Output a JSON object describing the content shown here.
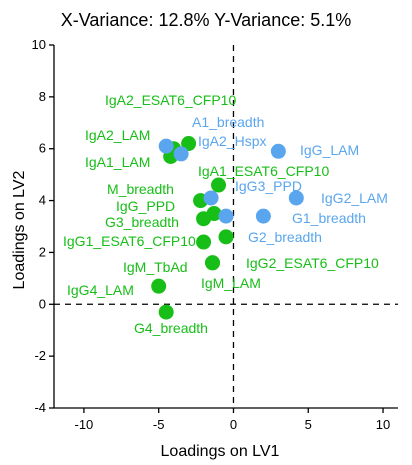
{
  "chart_data": {
    "type": "scatter",
    "title": "X-Variance: 12.8%  Y-Variance: 5.1%",
    "xlabel": "Loadings on LV1",
    "ylabel": "Loadings on LV2",
    "xlim": [
      -12,
      11
    ],
    "ylim": [
      -4,
      10
    ],
    "xticks": [
      -10,
      -5,
      0,
      5,
      10
    ],
    "yticks": [
      -4,
      -2,
      0,
      2,
      4,
      6,
      8,
      10
    ],
    "xtick_labels": [
      "-10",
      "-5",
      "0",
      "5",
      "10"
    ],
    "ytick_labels": [
      "-4",
      "-2",
      "0",
      "2",
      "4",
      "6",
      "8",
      "10"
    ],
    "reference_lines": {
      "x": 0,
      "y": 0,
      "style": "dashed"
    },
    "colors": {
      "green": "#17be17",
      "blue": "#5aa6ee"
    },
    "series": [
      {
        "color": "green",
        "points": [
          {
            "label": "IgA2_ESAT6_CFP10",
            "x": -3.0,
            "y": 6.2
          },
          {
            "label": "IgA2_LAM",
            "x": -4.0,
            "y": 6.0
          },
          {
            "label": "IgA1_LAM",
            "x": -4.2,
            "y": 5.7
          },
          {
            "label": "IgA1_ESAT6_CFP10",
            "x": -1.0,
            "y": 4.6
          },
          {
            "label": "M_breadth",
            "x": -2.2,
            "y": 4.0
          },
          {
            "label": "IgG_PPD",
            "x": -1.3,
            "y": 3.5
          },
          {
            "label": "G3_breadth",
            "x": -2.0,
            "y": 3.3
          },
          {
            "label": "IgG1_ESAT6_CFP10",
            "x": -2.0,
            "y": 2.4
          },
          {
            "label": "IgG2_ESAT6_CFP10",
            "x": -0.5,
            "y": 2.6
          },
          {
            "label": "IgM_TbAd",
            "x": -1.4,
            "y": 1.6
          },
          {
            "label": "IgM_LAM",
            "x": -1.4,
            "y": 1.6
          },
          {
            "label": "IgG4_LAM",
            "x": -5.0,
            "y": 0.7
          },
          {
            "label": "G4_breadth",
            "x": -4.5,
            "y": -0.3
          }
        ]
      },
      {
        "color": "blue",
        "points": [
          {
            "label": "A1_breadth",
            "x": -4.5,
            "y": 6.1
          },
          {
            "label": "IgA2_Hspx",
            "x": -3.5,
            "y": 5.8
          },
          {
            "label": "IgG_LAM",
            "x": 3.0,
            "y": 5.9
          },
          {
            "label": "IgG3_PPD",
            "x": -1.5,
            "y": 4.1
          },
          {
            "label": "IgG2_LAM",
            "x": 4.2,
            "y": 4.1
          },
          {
            "label": "G1_breadth",
            "x": 2.0,
            "y": 3.4
          },
          {
            "label": "G2_breadth",
            "x": -0.5,
            "y": 3.4
          }
        ]
      }
    ]
  }
}
